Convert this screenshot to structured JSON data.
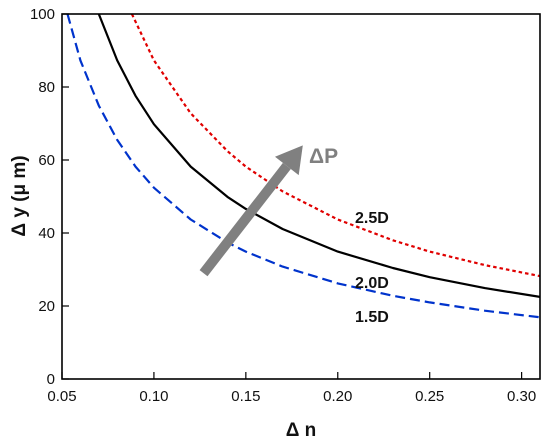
{
  "chart_data": {
    "type": "line",
    "xlabel": "Δ n",
    "ylabel": "Δ y (μ m)",
    "xlim": [
      0.05,
      0.31
    ],
    "ylim": [
      0,
      100
    ],
    "x_ticks": [
      "0.05",
      "0.10",
      "0.15",
      "0.20",
      "0.25",
      "0.30"
    ],
    "y_ticks": [
      "0",
      "20",
      "40",
      "60",
      "80",
      "100"
    ],
    "grid": false,
    "legend": "none",
    "series": [
      {
        "name": "1.5D",
        "color": "#0033cc",
        "dash": "dashed",
        "x": [
          0.053,
          0.06,
          0.07,
          0.08,
          0.09,
          0.1,
          0.12,
          0.14,
          0.15,
          0.17,
          0.2,
          0.23,
          0.25,
          0.28,
          0.31
        ],
        "y": [
          100,
          87.3,
          74.9,
          65.5,
          58.2,
          52.4,
          43.7,
          37.4,
          34.9,
          30.8,
          26.2,
          22.8,
          21.0,
          18.7,
          16.9
        ]
      },
      {
        "name": "2.0D",
        "color": "#000000",
        "dash": "solid",
        "x": [
          0.07,
          0.08,
          0.09,
          0.1,
          0.12,
          0.14,
          0.15,
          0.17,
          0.2,
          0.23,
          0.25,
          0.28,
          0.31
        ],
        "y": [
          100,
          87.3,
          77.6,
          69.8,
          58.2,
          49.9,
          46.6,
          41.1,
          34.9,
          30.4,
          27.9,
          24.9,
          22.5
        ]
      },
      {
        "name": "2.5D",
        "color": "#e00000",
        "dash": "dotted",
        "x": [
          0.088,
          0.1,
          0.12,
          0.14,
          0.15,
          0.17,
          0.2,
          0.23,
          0.25,
          0.28,
          0.31
        ],
        "y": [
          100,
          87.3,
          72.8,
          62.4,
          58.2,
          51.4,
          43.7,
          38.0,
          34.9,
          31.2,
          28.2
        ]
      }
    ],
    "curve_labels": [
      "2.5D",
      "2.0D",
      "1.5D"
    ],
    "annotation": {
      "label": "ΔP",
      "color": "#808080",
      "from": [
        0.127,
        29
      ],
      "to": [
        0.181,
        64
      ]
    }
  }
}
